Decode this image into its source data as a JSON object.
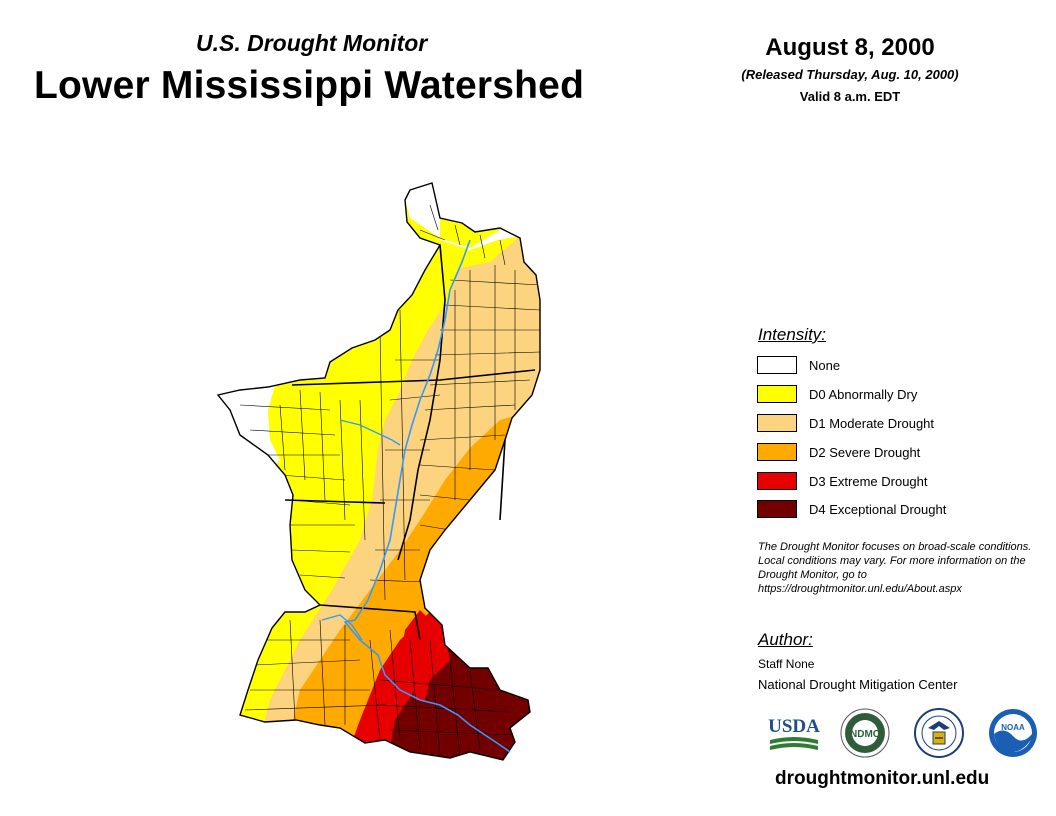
{
  "header": {
    "subtitle": "U.S. Drought Monitor",
    "title": "Lower Mississippi Watershed",
    "date": "August 8, 2000",
    "released": "(Released Thursday, Aug. 10, 2000)",
    "valid": "Valid 8 a.m. EDT"
  },
  "legend": {
    "title": "Intensity:",
    "items": [
      {
        "label": "None",
        "color": "#ffffff"
      },
      {
        "label": "D0 Abnormally Dry",
        "color": "#ffff00"
      },
      {
        "label": "D1 Moderate Drought",
        "color": "#fcd37f"
      },
      {
        "label": "D2 Severe Drought",
        "color": "#ffaa00"
      },
      {
        "label": "D3 Extreme Drought",
        "color": "#e60000"
      },
      {
        "label": "D4 Exceptional Drought",
        "color": "#730000"
      }
    ]
  },
  "note": "The Drought Monitor focuses on broad-scale conditions. Local conditions may vary. For more information on the Drought Monitor, go to https://droughtmonitor.unl.edu/About.aspx",
  "author": {
    "title": "Author:",
    "name": "Staff None",
    "org": "National Drought Mitigation Center"
  },
  "logos": {
    "usda": "USDA",
    "ndmc": "NDMC",
    "noaa": "NOAA"
  },
  "footer_url": "droughtmonitor.unl.edu",
  "colors": {
    "river": "#3399ff",
    "border": "#000000"
  }
}
